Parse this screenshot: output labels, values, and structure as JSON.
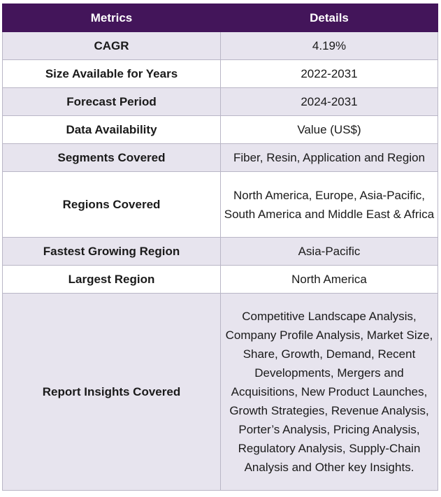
{
  "table": {
    "headers": [
      "Metrics",
      "Details"
    ],
    "rows": [
      {
        "metric": "CAGR",
        "detail": "4.19%"
      },
      {
        "metric": "Size Available for Years",
        "detail": "2022-2031"
      },
      {
        "metric": "Forecast Period",
        "detail": "2024-2031"
      },
      {
        "metric": "Data Availability",
        "detail": "Value (US$)"
      },
      {
        "metric": "Segments Covered",
        "detail": "Fiber, Resin, Application and Region"
      },
      {
        "metric": "Regions Covered",
        "detail": "North America, Europe, Asia-Pacific, South America and Middle East & Africa"
      },
      {
        "metric": "Fastest Growing Region",
        "detail": "Asia-Pacific"
      },
      {
        "metric": "Largest Region",
        "detail": "North America"
      },
      {
        "metric": "Report Insights Covered",
        "detail": "Competitive Landscape Analysis, Company Profile Analysis, Market Size, Share, Growth, Demand, Recent Developments, Mergers and Acquisitions, New Product Launches, Growth Strategies, Revenue Analysis, Porter’s Analysis, Pricing Analysis, Regulatory Analysis, Supply-Chain Analysis and Other key Insights."
      }
    ]
  },
  "colors": {
    "header_bg": "#43155a",
    "header_text": "#ffffff",
    "row_odd_bg": "#e7e4ee",
    "row_even_bg": "#ffffff",
    "border": "#b9b6c6"
  }
}
